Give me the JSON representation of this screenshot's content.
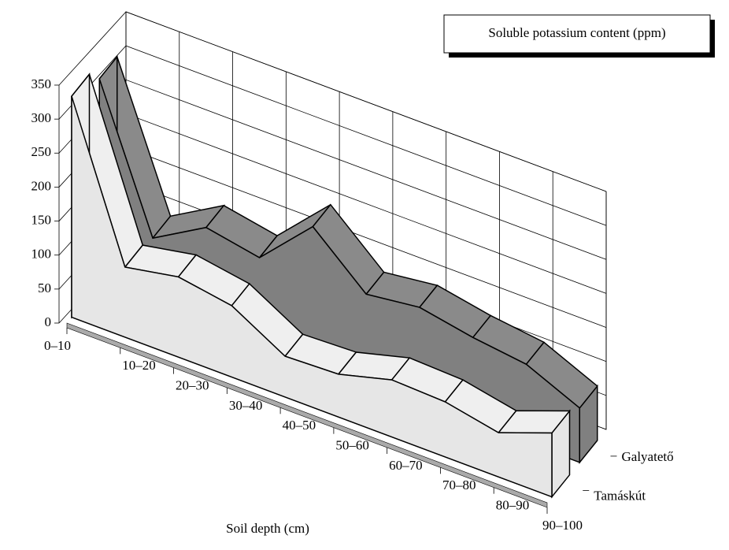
{
  "chart_data": {
    "type": "area3d",
    "title": "Soluble potassium content (ppm)",
    "x_label": "Soil depth (cm)",
    "categories": [
      "0–10",
      "10–20",
      "20–30",
      "30–40",
      "40–50",
      "50–60",
      "60–70",
      "70–80",
      "80–90",
      "90–100"
    ],
    "series": [
      {
        "name": "Tamáskút",
        "color": "#e6e6e6",
        "values": [
          325,
          103,
          118,
          105,
          60,
          63,
          84,
          81,
          65,
          94
        ]
      },
      {
        "name": "Galyatető",
        "color": "#808080",
        "values": [
          300,
          95,
          140,
          125,
          200,
          130,
          140,
          125,
          115,
          80
        ]
      }
    ],
    "ylim": [
      0,
      350
    ],
    "yticks": [
      0,
      50,
      100,
      150,
      200,
      250,
      300,
      350
    ],
    "grid": true
  }
}
